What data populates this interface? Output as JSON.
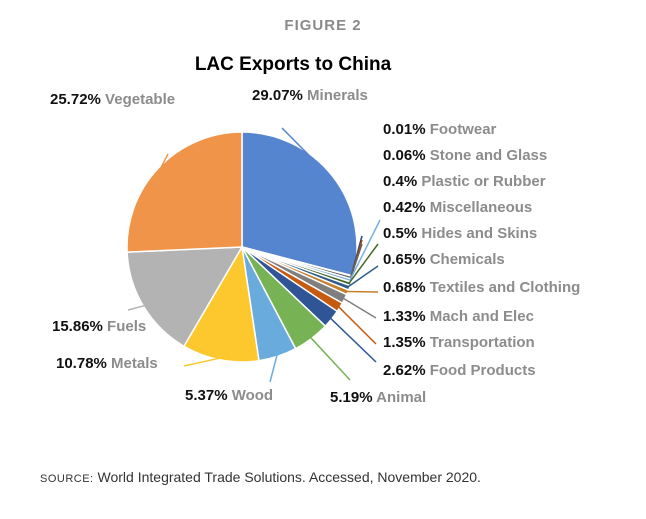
{
  "figure_label": "FIGURE 2",
  "source": {
    "label": "SOURCE:",
    "text": "World Integrated Trade Solutions. Accessed, November 2020."
  },
  "chart_data": {
    "type": "pie",
    "title": "LAC Exports to China",
    "slices": [
      {
        "label": "Minerals",
        "value": 29.07,
        "value_label": "29.07%",
        "color": "#5585cf"
      },
      {
        "label": "Footwear",
        "value": 0.01,
        "value_label": "0.01%",
        "color": "#264478"
      },
      {
        "label": "Stone and Glass",
        "value": 0.06,
        "value_label": "0.06%",
        "color": "#9e480e"
      },
      {
        "label": "Plastic or Rubber",
        "value": 0.4,
        "value_label": "0.4%",
        "color": "#636363"
      },
      {
        "label": "Miscellaneous",
        "value": 0.42,
        "value_label": "0.42%",
        "color": "#7cafdd"
      },
      {
        "label": "Hides and Skins",
        "value": 0.5,
        "value_label": "0.5%",
        "color": "#43682b"
      },
      {
        "label": "Chemicals",
        "value": 0.65,
        "value_label": "0.65%",
        "color": "#2e5d8c"
      },
      {
        "label": "Textiles and Clothing",
        "value": 0.68,
        "value_label": "0.68%",
        "color": "#c77f2b"
      },
      {
        "label": "Mach and Elec",
        "value": 1.33,
        "value_label": "1.33%",
        "color": "#7f7f7f"
      },
      {
        "label": "Transportation",
        "value": 1.35,
        "value_label": "1.35%",
        "color": "#c55a11"
      },
      {
        "label": "Food Products",
        "value": 2.62,
        "value_label": "2.62%",
        "color": "#2f5597"
      },
      {
        "label": "Animal",
        "value": 5.19,
        "value_label": "5.19%",
        "color": "#77b254"
      },
      {
        "label": "Wood",
        "value": 5.37,
        "value_label": "5.37%",
        "color": "#6aabde"
      },
      {
        "label": "Metals",
        "value": 10.78,
        "value_label": "10.78%",
        "color": "#fcc82e"
      },
      {
        "label": "Fuels",
        "value": 15.86,
        "value_label": "15.86%",
        "color": "#b3b3b3"
      },
      {
        "label": "Vegetable",
        "value": 25.72,
        "value_label": "25.72%",
        "color": "#ef9448"
      }
    ]
  }
}
